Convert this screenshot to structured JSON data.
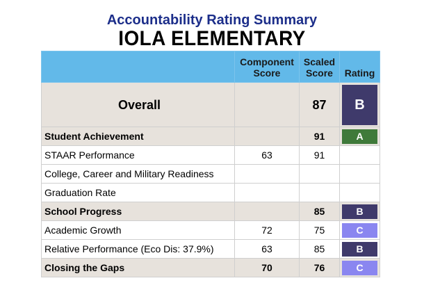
{
  "title": "Accountability Rating Summary",
  "school": "IOLA ELEMENTARY",
  "headers": {
    "component_score": "Component Score",
    "scaled_score": "Scaled Score",
    "rating": "Rating"
  },
  "colors": {
    "header_bg": "#62b9e9",
    "section_bg": "#e7e2dc",
    "rating_A": "#3f7a3a",
    "rating_B": "#3f3a6b",
    "rating_C": "#8a86f0"
  },
  "rows": [
    {
      "label": "Overall",
      "component": "",
      "scaled": "87",
      "rating": "B",
      "type": "overall"
    },
    {
      "label": "Student Achievement",
      "component": "",
      "scaled": "91",
      "rating": "A",
      "type": "section"
    },
    {
      "label": "STAAR Performance",
      "component": "63",
      "scaled": "91",
      "rating": "",
      "type": "plain"
    },
    {
      "label": "College, Career and Military Readiness",
      "component": "",
      "scaled": "",
      "rating": "",
      "type": "plain"
    },
    {
      "label": "Graduation Rate",
      "component": "",
      "scaled": "",
      "rating": "",
      "type": "plain"
    },
    {
      "label": "School Progress",
      "component": "",
      "scaled": "85",
      "rating": "B",
      "type": "section"
    },
    {
      "label": "Academic Growth",
      "component": "72",
      "scaled": "75",
      "rating": "C",
      "type": "plain"
    },
    {
      "label": "Relative Performance (Eco Dis: 37.9%)",
      "component": "63",
      "scaled": "85",
      "rating": "B",
      "type": "plain"
    },
    {
      "label": "Closing the Gaps",
      "component": "70",
      "scaled": "76",
      "rating": "C",
      "type": "section"
    }
  ]
}
